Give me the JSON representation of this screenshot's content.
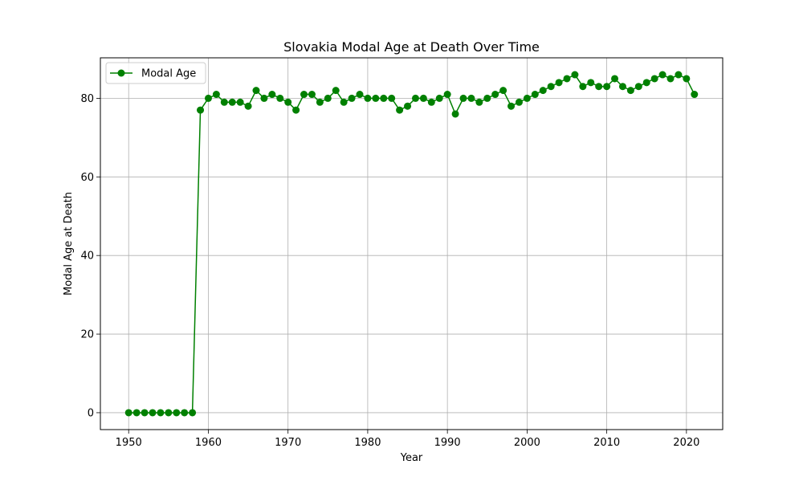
{
  "chart_data": {
    "type": "line",
    "title": "Slovakia Modal Age at Death Over Time",
    "xlabel": "Year",
    "ylabel": "Modal Age at Death",
    "xlim": [
      1946.45,
      2024.55
    ],
    "ylim": [
      -4.3,
      90.3
    ],
    "xticks": [
      1950,
      1960,
      1970,
      1980,
      1990,
      2000,
      2010,
      2020
    ],
    "yticks": [
      0,
      20,
      40,
      60,
      80
    ],
    "grid": true,
    "legend_position": "top-left",
    "series": [
      {
        "name": "Modal Age",
        "color": "#008000",
        "marker": "circle",
        "x": [
          1950,
          1951,
          1952,
          1953,
          1954,
          1955,
          1956,
          1957,
          1958,
          1959,
          1960,
          1961,
          1962,
          1963,
          1964,
          1965,
          1966,
          1967,
          1968,
          1969,
          1970,
          1971,
          1972,
          1973,
          1974,
          1975,
          1976,
          1977,
          1978,
          1979,
          1980,
          1981,
          1982,
          1983,
          1984,
          1985,
          1986,
          1987,
          1988,
          1989,
          1990,
          1991,
          1992,
          1993,
          1994,
          1995,
          1996,
          1997,
          1998,
          1999,
          2000,
          2001,
          2002,
          2003,
          2004,
          2005,
          2006,
          2007,
          2008,
          2009,
          2010,
          2011,
          2012,
          2013,
          2014,
          2015,
          2016,
          2017,
          2018,
          2019,
          2020,
          2021
        ],
        "y": [
          0,
          0,
          0,
          0,
          0,
          0,
          0,
          0,
          0,
          77,
          80,
          81,
          79,
          79,
          79,
          78,
          82,
          80,
          81,
          80,
          79,
          77,
          81,
          81,
          79,
          80,
          82,
          79,
          80,
          81,
          80,
          80,
          80,
          80,
          77,
          78,
          80,
          80,
          79,
          80,
          81,
          76,
          80,
          80,
          79,
          80,
          81,
          82,
          78,
          79,
          80,
          81,
          82,
          83,
          84,
          85,
          86,
          83,
          84,
          83,
          83,
          85,
          83,
          82,
          83,
          84,
          85,
          86,
          85,
          86,
          85,
          81
        ]
      }
    ]
  }
}
